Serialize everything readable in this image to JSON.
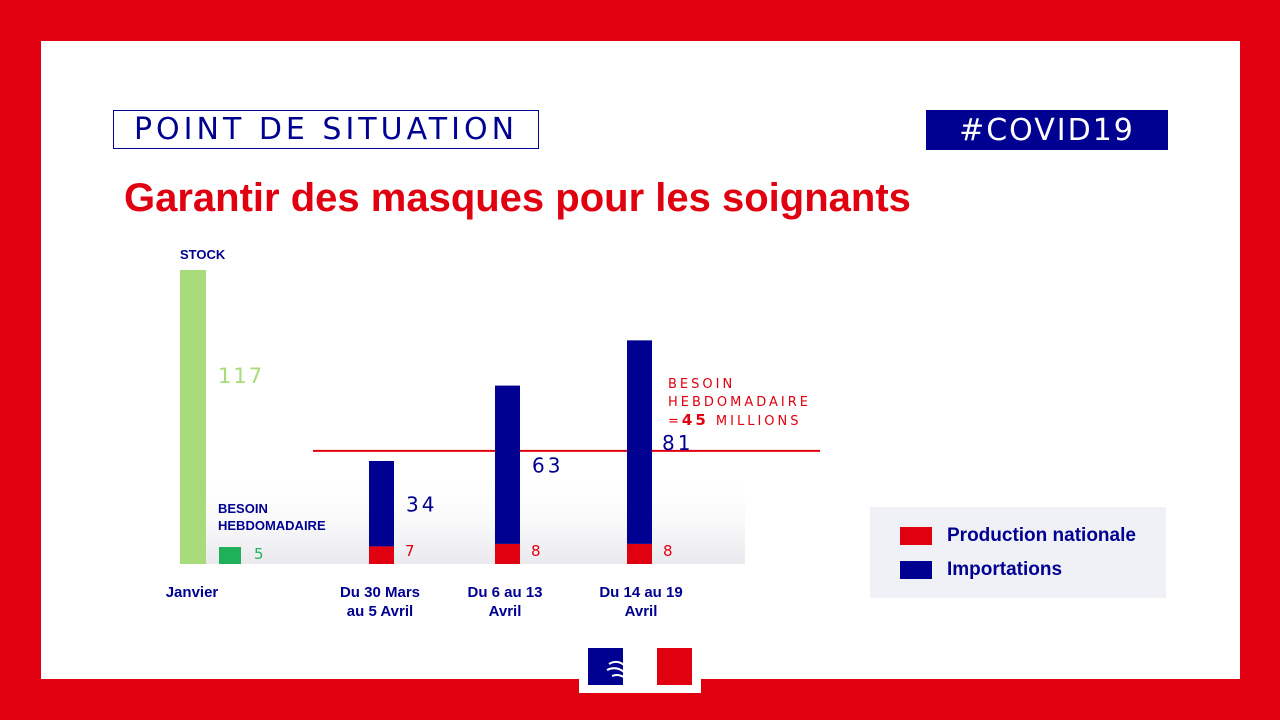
{
  "header": {
    "tag_left": "POINT DE SITUATION",
    "tag_right": "#COVID19",
    "title": "Garantir des masques pour les soignants"
  },
  "colors": {
    "republic_red": "#e1000f",
    "republic_blue": "#000091",
    "stock_green": "#a8dc7a",
    "need_green": "#1fb05a"
  },
  "legend": [
    {
      "label": "Production nationale",
      "color": "#e1000f"
    },
    {
      "label": "Importations",
      "color": "#000091"
    }
  ],
  "chart_data": {
    "type": "bar",
    "categories": [
      "Janvier",
      "Du 30 Mars au 5 Avril",
      "Du 6 au 13 Avril",
      "Du 14 au 19 Avril"
    ],
    "stock": {
      "label": "STOCK",
      "value": 117,
      "category": "Janvier"
    },
    "january_need": {
      "label_line1": "BESOIN",
      "label_line2": "HEBDOMADAIRE",
      "value": 5
    },
    "series": [
      {
        "name": "Production nationale",
        "values": [
          null,
          7,
          8,
          8
        ]
      },
      {
        "name": "Importations",
        "values": [
          null,
          34,
          63,
          81
        ]
      }
    ],
    "weekly_need_line": {
      "value": 45,
      "label_line1": "BESOIN",
      "label_line2": "HEBDOMADAIRE",
      "label_line3_prefix": "=",
      "label_line3_value": "45",
      "label_line3_suffix": " MILLIONS"
    },
    "ylim": [
      0,
      117
    ]
  }
}
